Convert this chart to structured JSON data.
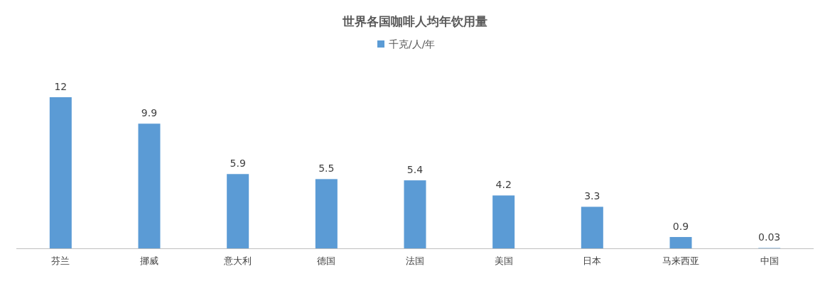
{
  "chart_data": {
    "type": "bar",
    "title": "世界各国咖啡人均年饮用量",
    "categories": [
      "芬兰",
      "挪威",
      "意大利",
      "德国",
      "法国",
      "美国",
      "日本",
      "马来西亚",
      "中国"
    ],
    "series": [
      {
        "name": "千克/人/年",
        "color": "#5b9bd5",
        "values": [
          12,
          9.9,
          5.9,
          5.5,
          5.4,
          4.2,
          3.3,
          0.9,
          0.03
        ]
      }
    ],
    "data_labels": true,
    "legend": "top"
  }
}
